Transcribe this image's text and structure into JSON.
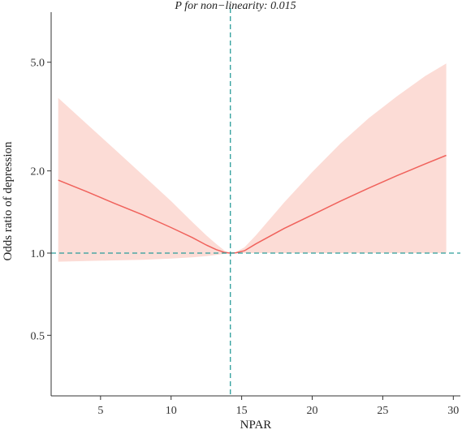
{
  "chart_data": {
    "type": "line",
    "title": "",
    "annotation": "P for non−linearity: 0.015",
    "xlabel": "NPAR",
    "ylabel": "Odds ratio of depression",
    "x_ticks": [
      5,
      10,
      15,
      20,
      25,
      30
    ],
    "x_tick_labels": [
      "5",
      "10",
      "15",
      "20",
      "25",
      "30"
    ],
    "y_ticks": [
      0.5,
      1.0,
      2.0,
      5.0
    ],
    "y_tick_labels": [
      "0.5",
      "1.0",
      "2.0",
      "5.0"
    ],
    "xlim": [
      1.5,
      30.5
    ],
    "ylim": [
      0.3,
      8.0
    ],
    "y_scale": "log",
    "grid": false,
    "reference_x": 14.2,
    "reference_y": 1.0,
    "series": [
      {
        "x": [
          2.0,
          4.0,
          6.0,
          8.0,
          10.0,
          11.5,
          12.5,
          13.2,
          13.8,
          14.2,
          14.6,
          15.2,
          16.0,
          18.0,
          20.0,
          22.0,
          24.0,
          26.0,
          28.0,
          29.5
        ],
        "y": [
          1.85,
          1.68,
          1.52,
          1.38,
          1.24,
          1.14,
          1.07,
          1.03,
          1.005,
          1.0,
          1.003,
          1.02,
          1.08,
          1.23,
          1.38,
          1.55,
          1.73,
          1.92,
          2.12,
          2.28
        ],
        "lower": [
          0.93,
          0.935,
          0.94,
          0.945,
          0.955,
          0.965,
          0.975,
          0.985,
          0.995,
          1.0,
          1.0,
          1.0,
          1.0,
          1.0,
          1.0,
          1.0,
          1.0,
          1.0,
          1.0,
          1.0
        ],
        "upper": [
          3.7,
          2.98,
          2.4,
          1.93,
          1.55,
          1.3,
          1.16,
          1.08,
          1.02,
          1.0,
          1.01,
          1.05,
          1.16,
          1.53,
          1.98,
          2.52,
          3.12,
          3.75,
          4.45,
          4.95
        ]
      }
    ],
    "colors": {
      "line": "#f0625c",
      "ci_band": "#fcdcd6",
      "reference": "#2a9d9a",
      "axis": "#333333"
    }
  }
}
